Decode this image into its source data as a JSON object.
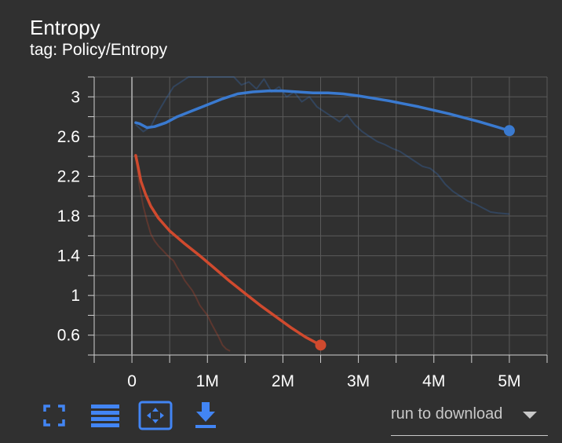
{
  "header": {
    "title": "Entropy",
    "subtitle": "tag: Policy/Entropy"
  },
  "toolbar": {
    "icons": [
      "fullscreen-icon",
      "data-table-icon",
      "fit-domain-icon",
      "download-icon"
    ],
    "download_select_label": "run to download",
    "accent_color": "#4285f4"
  },
  "colors": {
    "background": "#303030",
    "grid": "#5a5a5a",
    "text": "#ffffff",
    "blue": "#3a7ad0",
    "red": "#d04a2e"
  },
  "chart_data": {
    "type": "line",
    "title": "Entropy",
    "xlabel": "",
    "ylabel": "",
    "xlim": [
      -0.5,
      5.5
    ],
    "ylim": [
      0.4,
      3.2
    ],
    "x_ticks": [
      0,
      1,
      2,
      3,
      4,
      5
    ],
    "x_tick_labels": [
      "0",
      "1M",
      "2M",
      "3M",
      "4M",
      "5M"
    ],
    "y_ticks": [
      0.6,
      1,
      1.4,
      1.8,
      2.2,
      2.6,
      3
    ],
    "y_tick_labels": [
      "0.6",
      "1",
      "1.4",
      "1.8",
      "2.2",
      "2.6",
      "3"
    ],
    "grid": true,
    "series": [
      {
        "color": "#3a7ad0",
        "x": [
          0.05,
          0.1,
          0.2,
          0.3,
          0.45,
          0.6,
          0.8,
          1.0,
          1.2,
          1.4,
          1.6,
          1.8,
          2.0,
          2.2,
          2.4,
          2.6,
          2.8,
          3.0,
          3.4,
          3.8,
          4.2,
          4.6,
          5.0
        ],
        "y": [
          2.74,
          2.73,
          2.69,
          2.7,
          2.74,
          2.8,
          2.86,
          2.92,
          2.98,
          3.03,
          3.05,
          3.06,
          3.06,
          3.05,
          3.04,
          3.04,
          3.03,
          3.01,
          2.96,
          2.9,
          2.83,
          2.75,
          2.66
        ],
        "raw_x": [
          0.05,
          0.15,
          0.25,
          0.35,
          0.45,
          0.55,
          0.65,
          0.75,
          0.85,
          0.95,
          1.05,
          1.15,
          1.25,
          1.35,
          1.45,
          1.55,
          1.65,
          1.75,
          1.85,
          1.95,
          2.05,
          2.15,
          2.25,
          2.35,
          2.45,
          2.55,
          2.65,
          2.75,
          2.85,
          2.95,
          3.05,
          3.15,
          3.25,
          3.35,
          3.45,
          3.55,
          3.65,
          3.75,
          3.85,
          3.95,
          4.05,
          4.15,
          4.25,
          4.35,
          4.45,
          4.55,
          4.65,
          4.75,
          4.85,
          5.0
        ],
        "raw_y": [
          2.72,
          2.65,
          2.7,
          2.85,
          2.98,
          3.1,
          3.15,
          3.22,
          3.25,
          3.28,
          3.3,
          3.26,
          3.28,
          3.2,
          3.12,
          3.15,
          3.08,
          3.18,
          3.05,
          3.1,
          3.0,
          3.05,
          2.95,
          3.0,
          2.9,
          2.85,
          2.8,
          2.75,
          2.82,
          2.72,
          2.65,
          2.6,
          2.55,
          2.52,
          2.48,
          2.45,
          2.4,
          2.35,
          2.3,
          2.28,
          2.22,
          2.12,
          2.05,
          2.0,
          1.95,
          1.92,
          1.88,
          1.84,
          1.83,
          1.82
        ]
      },
      {
        "color": "#d04a2e",
        "x": [
          0.05,
          0.08,
          0.12,
          0.18,
          0.25,
          0.35,
          0.5,
          0.7,
          0.9,
          1.1,
          1.3,
          1.5,
          1.7,
          1.9,
          2.1,
          2.3,
          2.5
        ],
        "y": [
          2.41,
          2.3,
          2.15,
          2.02,
          1.9,
          1.78,
          1.65,
          1.52,
          1.4,
          1.27,
          1.14,
          1.02,
          0.9,
          0.79,
          0.68,
          0.58,
          0.5
        ],
        "raw_x": [
          0.05,
          0.1,
          0.15,
          0.2,
          0.25,
          0.3,
          0.35,
          0.4,
          0.45,
          0.5,
          0.55,
          0.6,
          0.65,
          0.7,
          0.75,
          0.8,
          0.85,
          0.9,
          0.95,
          1.0,
          1.05,
          1.1,
          1.15,
          1.2,
          1.25,
          1.3
        ],
        "raw_y": [
          2.42,
          2.1,
          1.9,
          1.75,
          1.62,
          1.55,
          1.5,
          1.46,
          1.42,
          1.38,
          1.35,
          1.28,
          1.22,
          1.15,
          1.1,
          1.05,
          0.98,
          0.9,
          0.85,
          0.8,
          0.72,
          0.65,
          0.58,
          0.5,
          0.46,
          0.44
        ]
      }
    ]
  }
}
